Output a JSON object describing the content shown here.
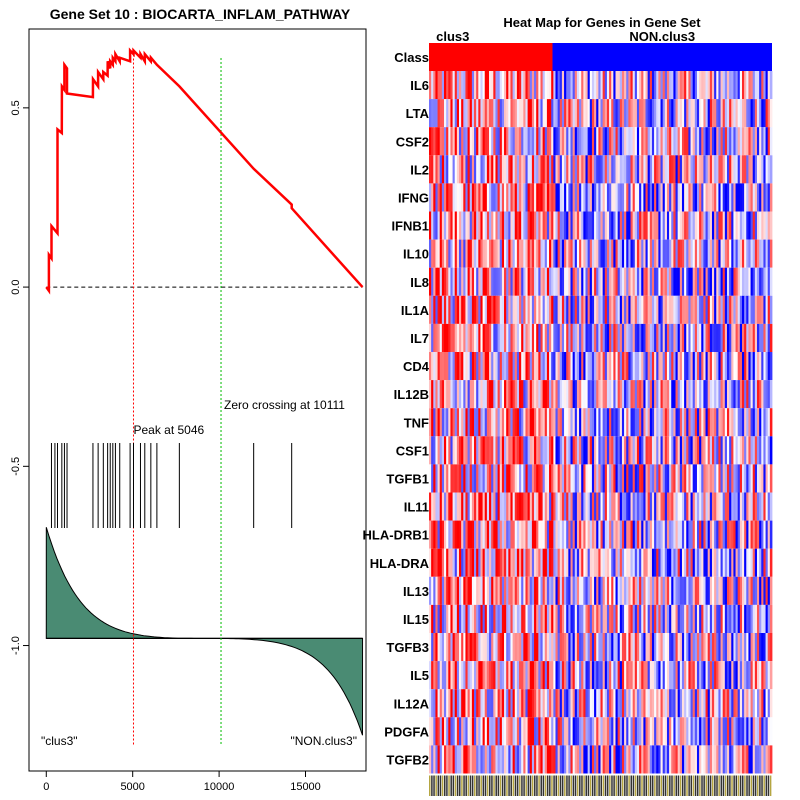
{
  "chart_data": [
    {
      "type": "line",
      "title": "Gene Set  10 : BIOCARTA_INFLAM_PATHWAY",
      "xlim": [
        -1000,
        18500
      ],
      "ylim": [
        -1.35,
        0.72
      ],
      "x_ticks": [
        0,
        5000,
        10000,
        15000
      ],
      "x_tick_labels": [
        "0",
        "5000",
        "10000",
        "15000"
      ],
      "y_ticks": [
        0.5,
        0.0,
        -0.5,
        -1.0
      ],
      "y_tick_labels": [
        "0.5",
        "0.0",
        "-0.5",
        "-1.0"
      ],
      "running_enrichment_score": {
        "x": [
          0,
          150,
          151,
          300,
          301,
          650,
          651,
          900,
          901,
          1050,
          1051,
          1200,
          1201,
          2700,
          2701,
          3000,
          3001,
          3300,
          3301,
          3550,
          3551,
          3700,
          3701,
          3850,
          3851,
          4000,
          4001,
          4250,
          4251,
          4850,
          4851,
          5046,
          5047,
          5450,
          5451,
          5700,
          5701,
          6050,
          6051,
          6400,
          6401,
          7700,
          7701,
          12000,
          12001,
          14200,
          14201,
          18300
        ],
        "y": [
          0.0,
          -0.01,
          0.09,
          0.08,
          0.17,
          0.15,
          0.44,
          0.43,
          0.56,
          0.55,
          0.62,
          0.61,
          0.54,
          0.53,
          0.58,
          0.56,
          0.6,
          0.58,
          0.6,
          0.59,
          0.63,
          0.61,
          0.63,
          0.62,
          0.64,
          0.63,
          0.65,
          0.63,
          0.64,
          0.63,
          0.66,
          0.65,
          0.66,
          0.64,
          0.65,
          0.63,
          0.65,
          0.63,
          0.64,
          0.62,
          0.62,
          0.56,
          0.56,
          0.33,
          0.33,
          0.23,
          0.22,
          0.0
        ]
      },
      "gene_hits_x": [
        300,
        500,
        650,
        900,
        1050,
        1200,
        2700,
        3000,
        3300,
        3550,
        3700,
        3850,
        4000,
        4250,
        4850,
        5046,
        5450,
        5700,
        6050,
        6400,
        7700,
        12000,
        14200
      ],
      "peak": {
        "x": 5046,
        "label": "Peak at 5046"
      },
      "zero_crossing": {
        "x": 10111,
        "label": "Zero crossing at 10111"
      },
      "ranked_metric": {
        "top": -0.67,
        "baseline": -0.98,
        "bottom": -1.25,
        "n": 18300
      },
      "left_label": "\"clus3\"",
      "right_label": "\"NON.clus3\""
    },
    {
      "type": "heatmap",
      "title": "Heat Map for Genes in Gene Set",
      "class_row_label": "Class",
      "classes": [
        {
          "name": "clus3",
          "fraction": 0.36,
          "color": "#ff0000"
        },
        {
          "name": "NON.clus3",
          "fraction": 0.64,
          "color": "#0000ff"
        }
      ],
      "genes": [
        "IL6",
        "LTA",
        "CSF2",
        "IL2",
        "IFNG",
        "IFNB1",
        "IL10",
        "IL8",
        "IL1A",
        "IL7",
        "CD4",
        "IL12B",
        "TNF",
        "CSF1",
        "TGFB1",
        "IL11",
        "HLA-DRB1",
        "HLA-DRA",
        "IL13",
        "IL15",
        "TGFB3",
        "IL5",
        "IL12A",
        "PDGFA",
        "TGFB2"
      ],
      "n_samples": 160
    }
  ],
  "colors": {
    "enrichment_line": "#ff0000",
    "peak_line": "#ff0000",
    "zero_line": "#00bb00",
    "metric_fill": "#4a8b73",
    "high": "#ff0000",
    "low": "#0000ff"
  }
}
